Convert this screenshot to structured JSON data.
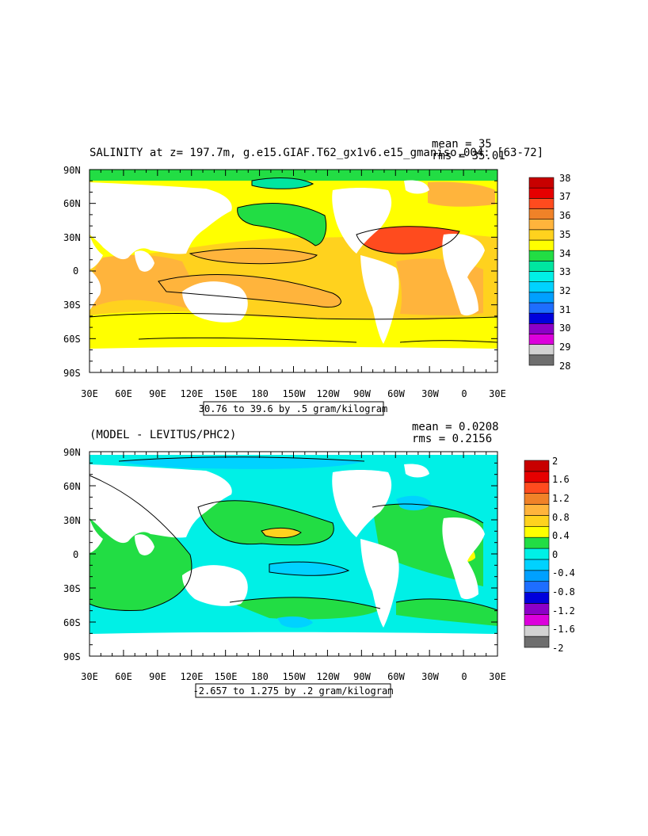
{
  "colors": {
    "top": [
      "#6e6e6e",
      "#d2d2d2",
      "#dc00dc",
      "#8c00c8",
      "#0000dc",
      "#1e6eff",
      "#00a0ff",
      "#00d2ff",
      "#00f0e6",
      "#00e6a0",
      "#22dd44",
      "#ffff00",
      "#ffd21e",
      "#ffb43c",
      "#f08228",
      "#ff4b1e",
      "#e60000",
      "#c80000"
    ],
    "diff": [
      "#6e6e6e",
      "#d2d2d2",
      "#dc00dc",
      "#8c00c8",
      "#0000dc",
      "#1e6eff",
      "#00a0ff",
      "#00d2ff",
      "#00f0e6",
      "#22dd44",
      "#ffff00",
      "#ffd21e",
      "#ffb43c",
      "#f08228",
      "#ff4b1e",
      "#e60000",
      "#c80000"
    ]
  },
  "top_panel": {
    "title": "SALINITY at z= 197.7m, g.e15.GIAF.T62_gx1v6.e15_gmaniso.004: [63-72]",
    "mean": "mean = 35",
    "rms": "rms = 35.01",
    "range_label": "30.76 to 39.6 by .5 gram/kilogram",
    "legend_labels": [
      "38",
      "37",
      "36",
      "35",
      "34",
      "33",
      "32",
      "31",
      "30",
      "29",
      "28"
    ]
  },
  "bottom_panel": {
    "title": "(MODEL - LEVITUS/PHC2)",
    "mean": "mean = 0.0208",
    "rms": "rms = 0.2156",
    "range_label": "-2.657 to 1.275 by .2 gram/kilogram",
    "legend_labels": [
      "2",
      "1.6",
      "1.2",
      "0.8",
      "0.4",
      "0",
      "-0.4",
      "-0.8",
      "-1.2",
      "-1.6",
      "-2"
    ]
  },
  "lat_labels": [
    "90N",
    "60N",
    "30N",
    "0",
    "30S",
    "60S",
    "90S"
  ],
  "lon_labels": [
    "30E",
    "60E",
    "90E",
    "120E",
    "150E",
    "180",
    "150W",
    "120W",
    "90W",
    "60W",
    "30W",
    "0",
    "30E"
  ]
}
